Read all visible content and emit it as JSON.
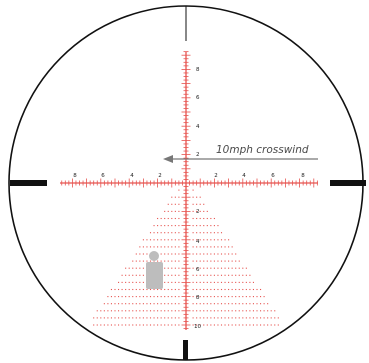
{
  "reticle": {
    "annotation": "10mph crosswind",
    "reticle_color": "#e6534f",
    "frame_color": "#111111",
    "target_color": "#bdbdbd",
    "arrow_color": "#777777",
    "horizontal_labels": [
      "8",
      "6",
      "4",
      "2",
      "2",
      "4",
      "6",
      "8"
    ],
    "upper_vertical_labels": [
      "8",
      "6",
      "4",
      "2"
    ],
    "lower_vertical_labels": [
      "2",
      "4",
      "6",
      "8",
      "10"
    ]
  }
}
